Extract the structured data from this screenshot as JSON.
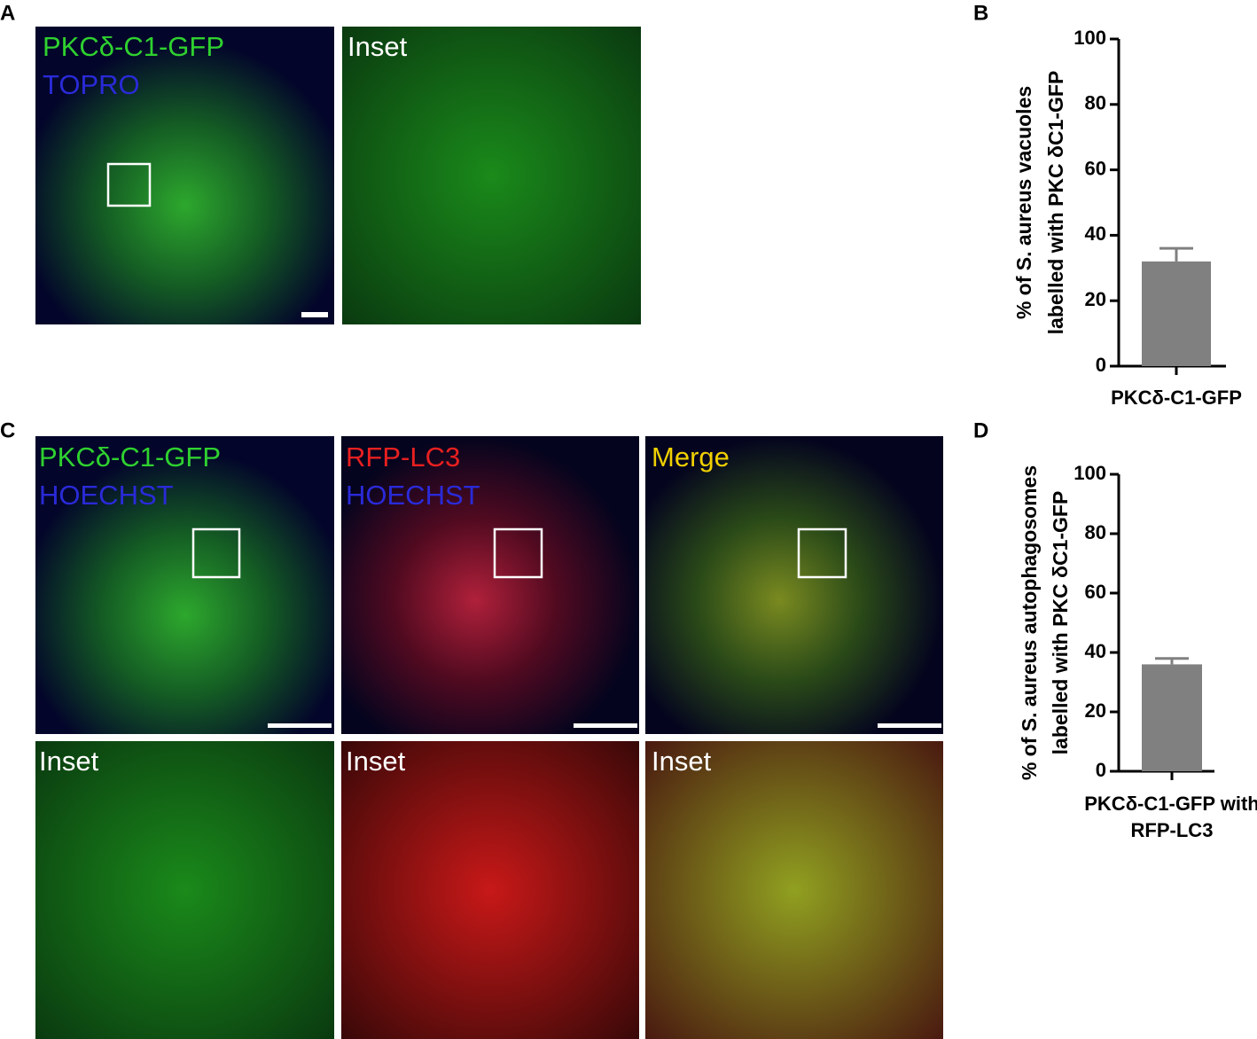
{
  "panels": {
    "A": {
      "letter": "A",
      "image1": [
        "PKCδ-C1-GFP",
        "TOPRO"
      ],
      "image2": "Inset"
    },
    "B": {
      "letter": "B"
    },
    "C": {
      "letter": "C",
      "image1": [
        "PKCδ-C1-GFP",
        "HOECHST"
      ],
      "image2": [
        "RFP-LC3",
        "HOECHST"
      ],
      "image3": "Merge",
      "insets": [
        "Inset",
        "Inset",
        "Inset"
      ]
    },
    "D": {
      "letter": "D"
    }
  },
  "chart_data": [
    {
      "type": "bar",
      "ylabel": [
        "% of S. aureus vacuoles",
        "labelled with PKC δC1-GFP"
      ],
      "categories": [
        "PKCδ-C1-GFP"
      ],
      "values": [
        32
      ],
      "errors": [
        4
      ],
      "color": "#808080",
      "ylim": [
        0,
        100
      ],
      "yticks": [
        0,
        20,
        40,
        60,
        80,
        100
      ]
    },
    {
      "type": "bar",
      "ylabel": [
        "% of S. aureus autophagosomes",
        "labelled with PKC δC1-GFP"
      ],
      "categories": [
        "PKCδ-C1-GFP with RFP-LC3"
      ],
      "values": [
        36
      ],
      "errors": [
        2
      ],
      "color": "#808080",
      "ylim": [
        0,
        100
      ],
      "yticks": [
        0,
        20,
        40,
        60,
        80,
        100
      ]
    }
  ]
}
